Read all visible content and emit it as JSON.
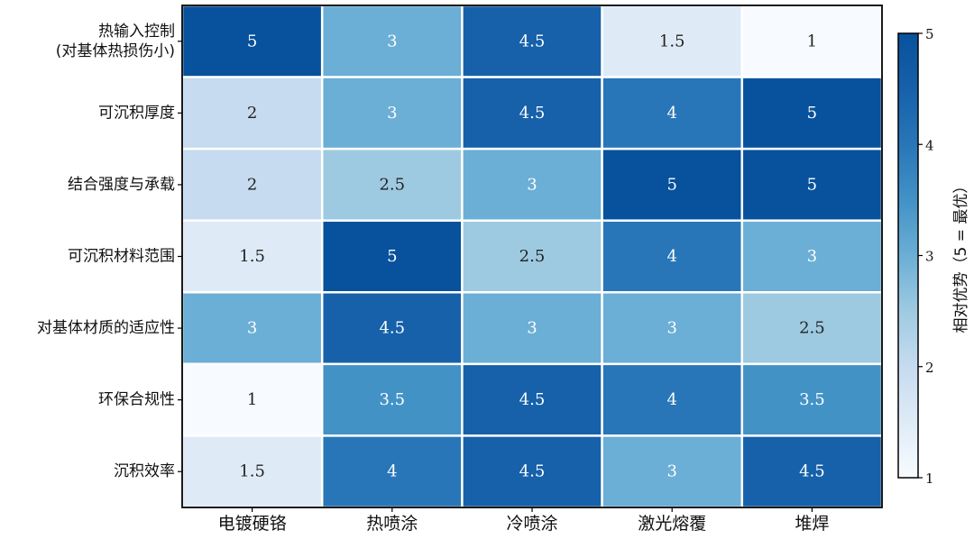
{
  "chart_data": {
    "type": "heatmap",
    "title": "",
    "xlabel": "",
    "ylabel": "",
    "columns": [
      "电镀硬铬",
      "热喷涂",
      "冷喷涂",
      "激光熔覆",
      "堆焊"
    ],
    "rows": [
      [
        "热输入控制",
        "(对基体热损伤小)"
      ],
      [
        "可沉积厚度"
      ],
      [
        "结合强度与承载"
      ],
      [
        "可沉积材料范围"
      ],
      [
        "对基体材质的适应性"
      ],
      [
        "环保合规性"
      ],
      [
        "沉积效率"
      ]
    ],
    "values": [
      [
        5,
        3,
        4.5,
        1.5,
        1
      ],
      [
        2,
        3,
        4.5,
        4,
        5
      ],
      [
        2,
        2.5,
        3,
        5,
        5
      ],
      [
        1.5,
        5,
        2.5,
        4,
        3
      ],
      [
        3,
        4.5,
        3,
        3,
        2.5
      ],
      [
        1,
        3.5,
        4.5,
        4,
        3.5
      ],
      [
        1.5,
        4,
        4.5,
        3,
        4.5
      ]
    ],
    "value_labels": [
      [
        "5",
        "3",
        "4.5",
        "1.5",
        "1"
      ],
      [
        "2",
        "3",
        "4.5",
        "4",
        "5"
      ],
      [
        "2",
        "2.5",
        "3",
        "5",
        "5"
      ],
      [
        "1.5",
        "5",
        "2.5",
        "4",
        "3"
      ],
      [
        "3",
        "4.5",
        "3",
        "3",
        "2.5"
      ],
      [
        "1",
        "3.5",
        "4.5",
        "4",
        "3.5"
      ],
      [
        "1.5",
        "4",
        "4.5",
        "3",
        "4.5"
      ]
    ],
    "colorbar": {
      "title": "相对优势（5 = 最优）",
      "range": [
        1,
        5
      ],
      "ticks": [
        "1",
        "2",
        "3",
        "4",
        "5"
      ],
      "colormap": "Blues",
      "color_low": "#f7fbff",
      "color_high": "#08519c"
    },
    "grid": false
  }
}
